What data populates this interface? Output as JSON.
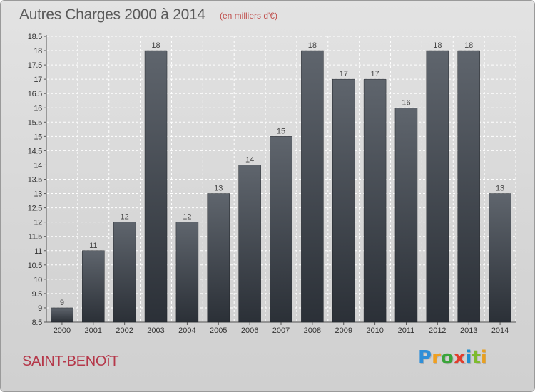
{
  "header": {
    "title": "Autres Charges 2000 à 2014",
    "unit": "(en milliers d'€)"
  },
  "footer": {
    "place": "SAINT-BENOîT",
    "logo_letters": [
      "P",
      "r",
      "o",
      "x",
      "i",
      "t",
      "i"
    ],
    "logo_colors": [
      "#2f8fd8",
      "#f0a020",
      "#3aa53a",
      "#e23c2c",
      "#1e8fd0",
      "#7dbb2c",
      "#e8a020"
    ]
  },
  "chart_data": {
    "type": "bar",
    "title": "Autres Charges 2000 à 2014",
    "xlabel": "",
    "ylabel": "",
    "categories": [
      "2000",
      "2001",
      "2002",
      "2003",
      "2004",
      "2005",
      "2006",
      "2007",
      "2008",
      "2009",
      "2010",
      "2011",
      "2012",
      "2013",
      "2014"
    ],
    "values": [
      9,
      11,
      12,
      18,
      12,
      13,
      14,
      15,
      18,
      17,
      17,
      16,
      18,
      18,
      13
    ],
    "ylim": [
      8.5,
      18.5
    ],
    "yticks": [
      "8.5",
      "9",
      "9.5",
      "10",
      "10.5",
      "11",
      "11.5",
      "12",
      "12.5",
      "13",
      "13.5",
      "14",
      "14.5",
      "15",
      "15.5",
      "16",
      "16.5",
      "17",
      "17.5",
      "18",
      "18.5"
    ],
    "grid": true,
    "bar_color": "#3a3f46"
  }
}
